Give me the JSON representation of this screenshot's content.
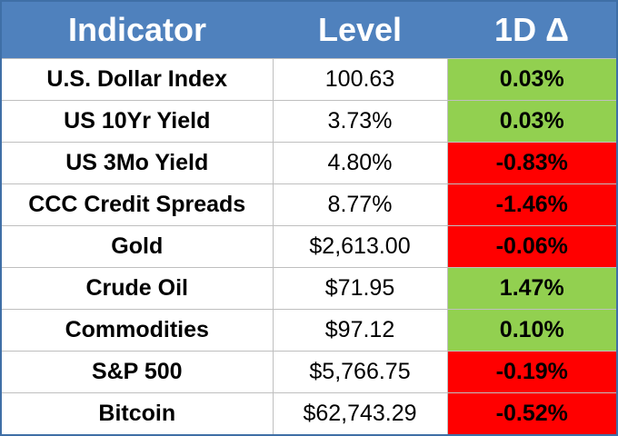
{
  "table": {
    "header": [
      "Indicator",
      "Level",
      "1D Δ"
    ],
    "rows": [
      [
        "U.S. Dollar Index",
        "100.63",
        "0.03%"
      ],
      [
        "US 10Yr Yield",
        "3.73%",
        "0.03%"
      ],
      [
        "US 3Mo Yield",
        "4.80%",
        "-0.83%"
      ],
      [
        "CCC Credit Spreads",
        "8.77%",
        "-1.46%"
      ],
      [
        "Gold",
        "$2,613.00",
        "-0.06%"
      ],
      [
        "Crude Oil",
        "$71.95",
        "1.47%"
      ],
      [
        "Commodities",
        "$97.12",
        "0.10%"
      ],
      [
        "S&P 500",
        "$5,766.75",
        "-0.19%"
      ],
      [
        "Bitcoin",
        "$62,743.29",
        "-0.52%"
      ]
    ],
    "colors": {
      "header": "#4f81bd",
      "positive": "#92d050",
      "negative": "#ff0000"
    }
  }
}
